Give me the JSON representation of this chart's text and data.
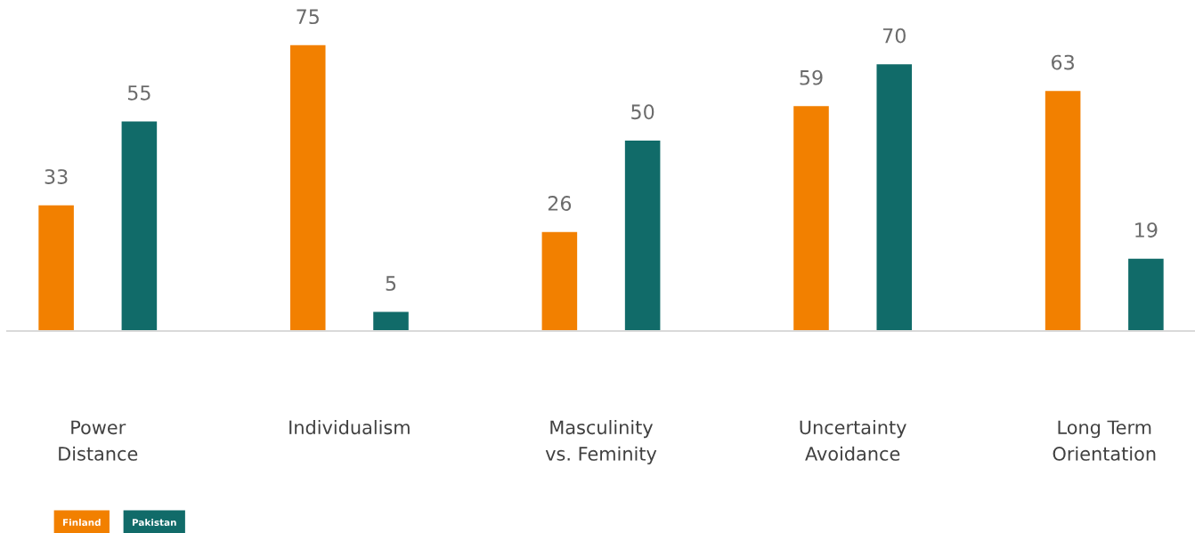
{
  "chart_data": {
    "type": "bar",
    "categories": [
      "Power\nDistance",
      "Individualism",
      "Masculinity\nvs. Feminity",
      "Uncertainty\nAvoidance",
      "Long Term\nOrientation"
    ],
    "series": [
      {
        "name": "Finland",
        "color": "#f28000",
        "values": [
          33,
          75,
          26,
          59,
          63
        ]
      },
      {
        "name": "Pakistan",
        "color": "#116b69",
        "values": [
          55,
          5,
          50,
          70,
          19
        ]
      }
    ],
    "data_labels": true,
    "legend": "bottom left",
    "grid": false
  }
}
